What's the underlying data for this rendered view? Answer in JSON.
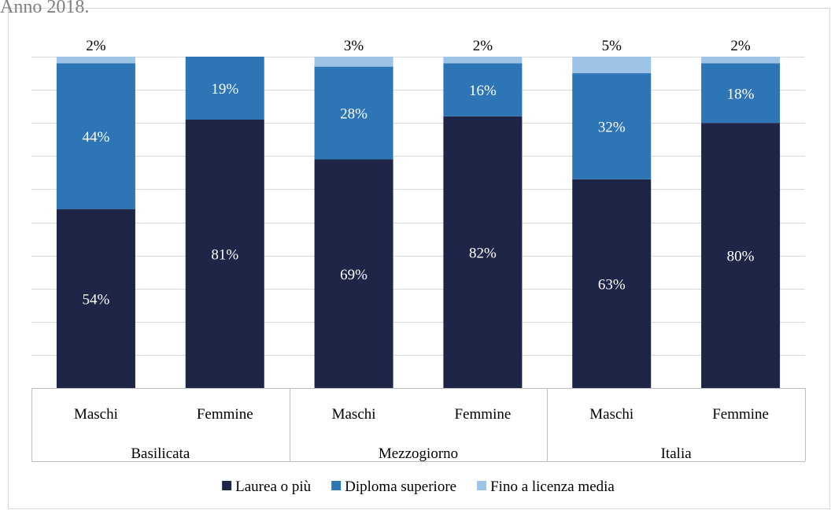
{
  "chart_data": {
    "type": "stacked_bar",
    "title": "Anno 2018.",
    "categories": [
      "Maschi",
      "Femmine",
      "Maschi",
      "Femmine",
      "Maschi",
      "Femmine"
    ],
    "groups": [
      "Basilicata",
      "Mezzogiorno",
      "Italia"
    ],
    "series": [
      {
        "name": "Laurea o più",
        "color": "#1f2547",
        "label_color": "#ffffff",
        "values": [
          54,
          81,
          69,
          82,
          63,
          80
        ],
        "value_labels": [
          "54%",
          "81%",
          "69%",
          "82%",
          "63%",
          "80%"
        ]
      },
      {
        "name": "Diploma superiore",
        "color": "#2e75b6",
        "label_color": "#ffffff",
        "values": [
          44,
          19,
          28,
          16,
          32,
          18
        ],
        "value_labels": [
          "44%",
          "19%",
          "28%",
          "16%",
          "32%",
          "18%"
        ]
      },
      {
        "name": "Fino a licenza media",
        "color": "#9dc3e6",
        "label_color": "#000000",
        "values": [
          2,
          0,
          3,
          2,
          5,
          2
        ],
        "value_labels": [
          "2%",
          null,
          "3%",
          "2%",
          "5%",
          "2%"
        ]
      }
    ],
    "ylim": [
      0,
      100
    ],
    "yticks": [
      0,
      10,
      20,
      30,
      40,
      50,
      60,
      70,
      80,
      90,
      100
    ],
    "grid": true,
    "legend": "bottom"
  }
}
